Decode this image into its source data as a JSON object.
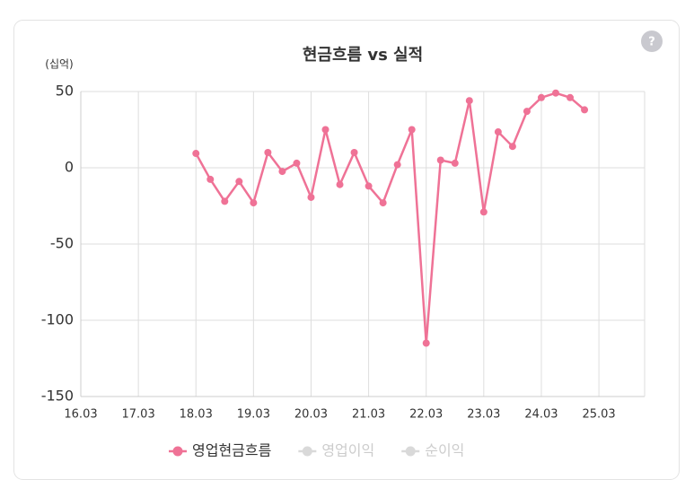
{
  "chart_data": {
    "type": "line",
    "title": "현금흐름 vs 실적",
    "y_unit": "(십억)",
    "help_icon": "?",
    "categories": [
      "16.03",
      null,
      null,
      null,
      "17.03",
      null,
      null,
      null,
      "18.03",
      null,
      null,
      null,
      "19.03",
      null,
      null,
      null,
      "20.03",
      null,
      null,
      null,
      "21.03",
      null,
      null,
      null,
      "22.03",
      null,
      null,
      null,
      "23.03",
      null,
      null,
      null,
      "24.03",
      null,
      null,
      null,
      "25.03",
      null,
      null,
      null
    ],
    "series": [
      {
        "name": "영업현금흐름",
        "color": "#ef7296",
        "visible": true,
        "values": [
          null,
          null,
          null,
          null,
          null,
          null,
          null,
          null,
          9.4,
          -7.6,
          -22,
          -9,
          -23,
          10,
          -2.4,
          3,
          -19.4,
          25,
          -11,
          10,
          -12,
          -23,
          2,
          25,
          -115,
          5,
          3,
          44,
          -29,
          23.5,
          14,
          37,
          46,
          49,
          46,
          38,
          null,
          null,
          null,
          null
        ]
      },
      {
        "name": "영업이익",
        "color": "#d9d9d9",
        "visible": false,
        "values": [
          null,
          null,
          null,
          null,
          null,
          null,
          null,
          null,
          null,
          null,
          null,
          null,
          null,
          null,
          null,
          null,
          null,
          null,
          null,
          null,
          null,
          null,
          null,
          null,
          null,
          null,
          null,
          null,
          null,
          null,
          null,
          null,
          null,
          null,
          null,
          null,
          null,
          null,
          null,
          null
        ]
      },
      {
        "name": "순이익",
        "color": "#d9d9d9",
        "visible": false,
        "values": [
          null,
          null,
          null,
          null,
          null,
          null,
          null,
          null,
          null,
          null,
          null,
          null,
          null,
          null,
          null,
          null,
          null,
          null,
          null,
          null,
          null,
          null,
          null,
          null,
          null,
          null,
          null,
          null,
          null,
          null,
          null,
          null,
          null,
          null,
          null,
          null,
          null,
          null,
          null,
          null
        ]
      }
    ],
    "ylim": [
      -150,
      50
    ],
    "yticks": [
      -150,
      -100,
      -50,
      0,
      50
    ],
    "grid": true
  }
}
